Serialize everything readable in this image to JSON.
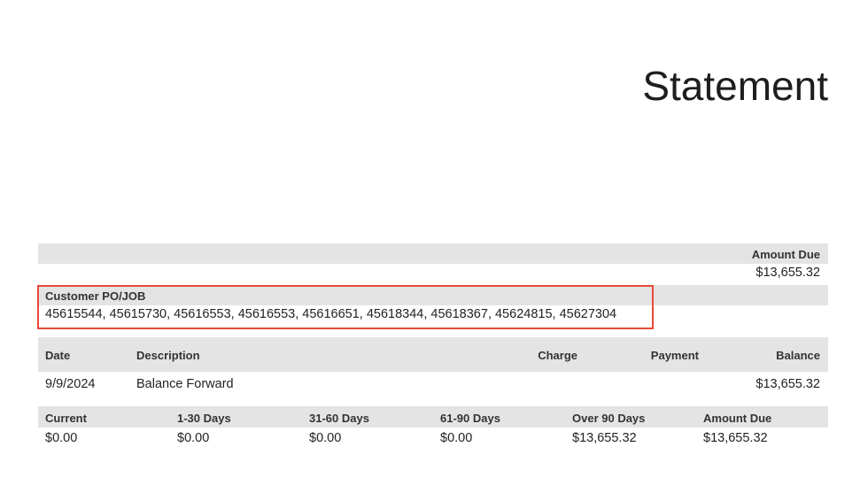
{
  "title": "Statement",
  "summary": {
    "amount_due_label": "Amount Due",
    "amount_due": "$13,655.32"
  },
  "po": {
    "label": "Customer PO/JOB",
    "value": "45615544, 45615730, 45616553, 45616553, 45616651, 45618344, 45618367, 45624815, 45627304",
    "highlight_color": "#e84a36"
  },
  "transactions": {
    "headers": {
      "date": "Date",
      "description": "Description",
      "charge": "Charge",
      "payment": "Payment",
      "balance": "Balance"
    },
    "rows": [
      {
        "date": "9/9/2024",
        "description": "Balance Forward",
        "charge": "",
        "payment": "",
        "balance": "$13,655.32"
      }
    ]
  },
  "aging": {
    "headers": [
      "Current",
      "1-30 Days",
      "31-60 Days",
      "61-90 Days",
      "Over 90 Days",
      "Amount Due"
    ],
    "values": [
      "$0.00",
      "$0.00",
      "$0.00",
      "$0.00",
      "$13,655.32",
      "$13,655.32"
    ]
  }
}
